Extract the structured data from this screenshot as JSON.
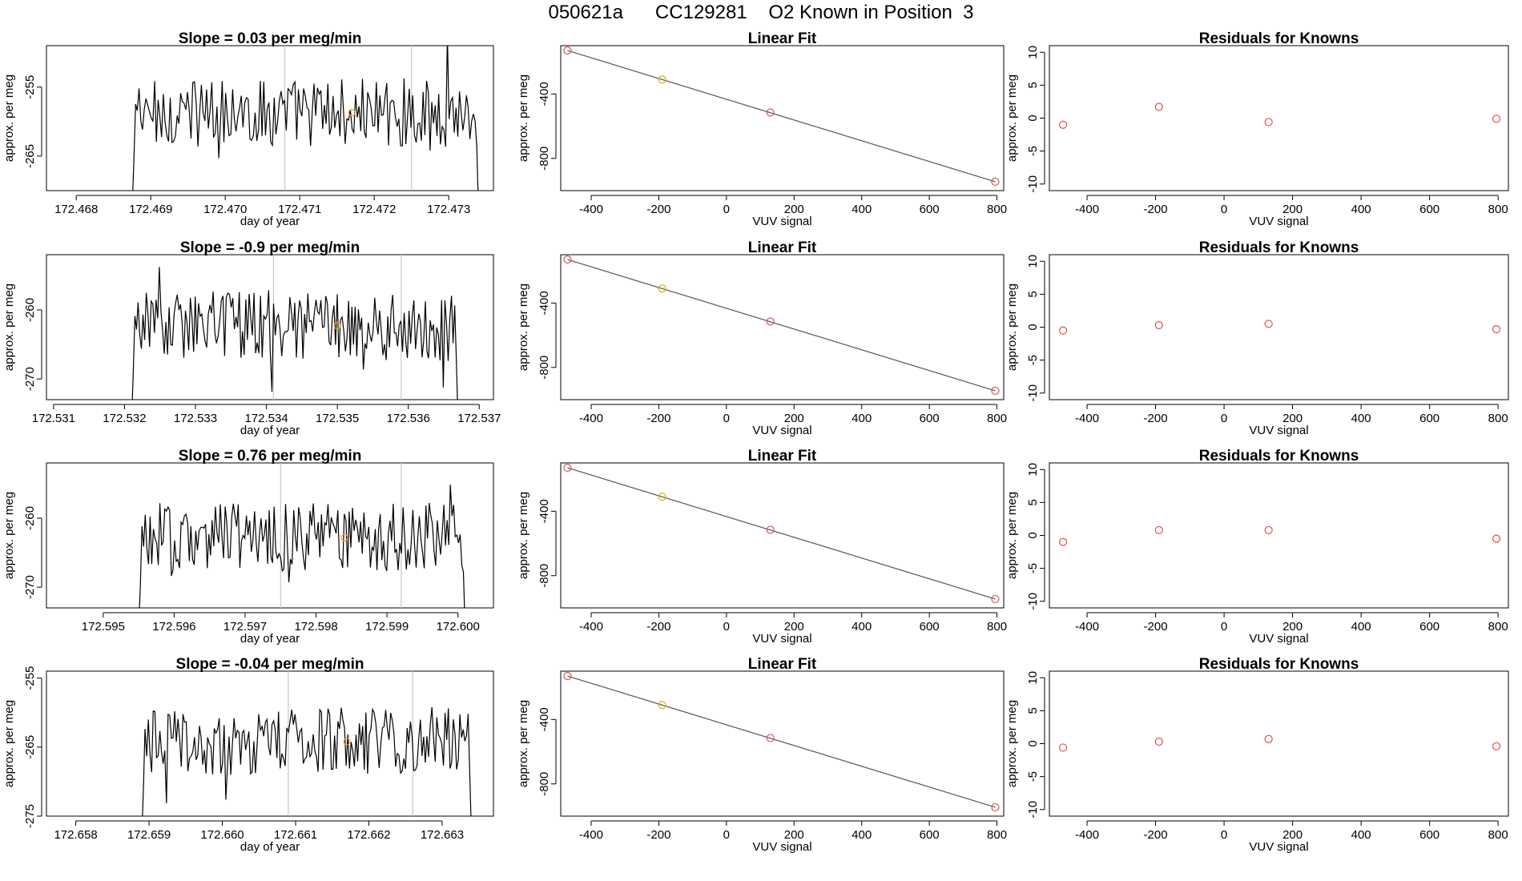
{
  "page_title": "050621a      CC129281    O2 Known in Position  3",
  "colors": {
    "axis": "#000000",
    "line": "#000000",
    "fit": "#555555",
    "orange": "#f0a030",
    "red": "#e05050",
    "vline": "#c8c8c8"
  },
  "chart_data": [
    {
      "type": "line",
      "row": 0,
      "title": "Slope =  0.03  per meg/min",
      "xlabel": "day of year",
      "ylabel": "approx. per meg",
      "xlim": [
        172.4676,
        172.4736
      ],
      "ylim": [
        -270,
        -249
      ],
      "xticks": [
        "172.468",
        "172.469",
        "172.470",
        "172.471",
        "172.472",
        "172.473"
      ],
      "yticks": [
        "-255",
        "-265"
      ],
      "start": 172.46875,
      "end": 172.4734,
      "vlines": [
        172.4708,
        172.4725
      ],
      "highlight": {
        "x": 172.4717,
        "y": -258.7
      }
    },
    {
      "type": "scatter",
      "row": 0,
      "title": "Linear Fit",
      "xlabel": "VUV signal",
      "ylabel": "approx. per meg",
      "xlim": [
        -490,
        820
      ],
      "ylim": [
        -1000,
        -100
      ],
      "xticks": [
        "-400",
        "-200",
        "0",
        "200",
        "400",
        "600",
        "800"
      ],
      "yticks": [
        "-400",
        "-800"
      ],
      "points": [
        [
          -470,
          -130
        ],
        [
          -190,
          -310
        ],
        [
          130,
          -515
        ],
        [
          795,
          -945
        ]
      ],
      "point_colors": [
        "red",
        "orange",
        "red",
        "red"
      ],
      "fit": [
        [
          -470,
          -130
        ],
        [
          795,
          -945
        ]
      ]
    },
    {
      "type": "scatter",
      "row": 0,
      "title": "Residuals for Knowns",
      "xlabel": "VUV signal",
      "ylabel": "approx. per meg",
      "xlim": [
        -510,
        830
      ],
      "ylim": [
        -11,
        11
      ],
      "xticks": [
        "-400",
        "-200",
        "0",
        "200",
        "400",
        "600",
        "800"
      ],
      "yticks": [
        "-10",
        "-5",
        "0",
        "5",
        "10"
      ],
      "points": [
        [
          -470,
          -1.0
        ],
        [
          -190,
          1.7
        ],
        [
          130,
          -0.6
        ],
        [
          795,
          -0.1
        ]
      ]
    },
    {
      "type": "line",
      "row": 1,
      "title": "Slope =  -0.9  per meg/min",
      "xlabel": "day of year",
      "ylabel": "approx. per meg",
      "xlim": [
        172.5309,
        172.5372
      ],
      "ylim": [
        -273,
        -252
      ],
      "xticks": [
        "172.531",
        "172.532",
        "172.533",
        "172.534",
        "172.535",
        "172.536",
        "172.537"
      ],
      "yticks": [
        "-260",
        "-270"
      ],
      "start": 172.5321,
      "end": 172.5367,
      "vlines": [
        172.5341,
        172.5359
      ],
      "highlight": {
        "x": 172.535,
        "y": -262.3
      }
    },
    {
      "type": "scatter",
      "row": 1,
      "title": "Linear Fit",
      "xlabel": "VUV signal",
      "ylabel": "approx. per meg",
      "xlim": [
        -490,
        820
      ],
      "ylim": [
        -1000,
        -100
      ],
      "xticks": [
        "-400",
        "-200",
        "0",
        "200",
        "400",
        "600",
        "800"
      ],
      "yticks": [
        "-400",
        "-800"
      ],
      "points": [
        [
          -470,
          -130
        ],
        [
          -190,
          -310
        ],
        [
          130,
          -515
        ],
        [
          795,
          -945
        ]
      ],
      "point_colors": [
        "red",
        "orange",
        "red",
        "red"
      ],
      "fit": [
        [
          -470,
          -130
        ],
        [
          795,
          -945
        ]
      ]
    },
    {
      "type": "scatter",
      "row": 1,
      "title": "Residuals for Knowns",
      "xlabel": "VUV signal",
      "ylabel": "approx. per meg",
      "xlim": [
        -510,
        830
      ],
      "ylim": [
        -11,
        11
      ],
      "xticks": [
        "-400",
        "-200",
        "0",
        "200",
        "400",
        "600",
        "800"
      ],
      "yticks": [
        "-10",
        "-5",
        "0",
        "5",
        "10"
      ],
      "points": [
        [
          -470,
          -0.5
        ],
        [
          -190,
          0.3
        ],
        [
          130,
          0.5
        ],
        [
          795,
          -0.3
        ]
      ]
    },
    {
      "type": "line",
      "row": 2,
      "title": "Slope =  0.76  per meg/min",
      "xlabel": "day of year",
      "ylabel": "approx. per meg",
      "xlim": [
        172.5942,
        172.6005
      ],
      "ylim": [
        -273,
        -252
      ],
      "xticks": [
        "172.595",
        "172.596",
        "172.597",
        "172.598",
        "172.599",
        "172.600"
      ],
      "yticks": [
        "-260",
        "-270"
      ],
      "start": 172.5955,
      "end": 172.6001,
      "vlines": [
        172.5975,
        172.5992
      ],
      "highlight": {
        "x": 172.5984,
        "y": -262.8
      }
    },
    {
      "type": "scatter",
      "row": 2,
      "title": "Linear Fit",
      "xlabel": "VUV signal",
      "ylabel": "approx. per meg",
      "xlim": [
        -490,
        820
      ],
      "ylim": [
        -1000,
        -100
      ],
      "xticks": [
        "-400",
        "-200",
        "0",
        "200",
        "400",
        "600",
        "800"
      ],
      "yticks": [
        "-400",
        "-800"
      ],
      "points": [
        [
          -470,
          -130
        ],
        [
          -190,
          -310
        ],
        [
          130,
          -515
        ],
        [
          795,
          -945
        ]
      ],
      "point_colors": [
        "red",
        "orange",
        "red",
        "red"
      ],
      "fit": [
        [
          -470,
          -130
        ],
        [
          795,
          -945
        ]
      ]
    },
    {
      "type": "scatter",
      "row": 2,
      "title": "Residuals for Knowns",
      "xlabel": "VUV signal",
      "ylabel": "approx. per meg",
      "xlim": [
        -510,
        830
      ],
      "ylim": [
        -11,
        11
      ],
      "xticks": [
        "-400",
        "-200",
        "0",
        "200",
        "400",
        "600",
        "800"
      ],
      "yticks": [
        "-10",
        "-5",
        "0",
        "5",
        "10"
      ],
      "points": [
        [
          -470,
          -1.0
        ],
        [
          -190,
          0.8
        ],
        [
          130,
          0.8
        ],
        [
          795,
          -0.5
        ]
      ]
    },
    {
      "type": "line",
      "row": 3,
      "title": "Slope =  -0.04  per meg/min",
      "xlabel": "day of year",
      "ylabel": "approx. per meg",
      "xlim": [
        172.6576,
        172.6637
      ],
      "ylim": [
        -275,
        -254
      ],
      "xticks": [
        "172.658",
        "172.659",
        "172.660",
        "172.661",
        "172.662",
        "172.663"
      ],
      "yticks": [
        "-255",
        "-265",
        "-275"
      ],
      "start": 172.6589,
      "end": 172.6634,
      "vlines": [
        172.6609,
        172.6626
      ],
      "highlight": {
        "x": 172.6617,
        "y": -264.2
      }
    },
    {
      "type": "scatter",
      "row": 3,
      "title": "Linear Fit",
      "xlabel": "VUV signal",
      "ylabel": "approx. per meg",
      "xlim": [
        -490,
        820
      ],
      "ylim": [
        -1000,
        -100
      ],
      "xticks": [
        "-400",
        "-200",
        "0",
        "200",
        "400",
        "600",
        "800"
      ],
      "yticks": [
        "-400",
        "-800"
      ],
      "points": [
        [
          -470,
          -130
        ],
        [
          -190,
          -310
        ],
        [
          130,
          -515
        ],
        [
          795,
          -945
        ]
      ],
      "point_colors": [
        "red",
        "orange",
        "red",
        "red"
      ],
      "fit": [
        [
          -470,
          -130
        ],
        [
          795,
          -945
        ]
      ]
    },
    {
      "type": "scatter",
      "row": 3,
      "title": "Residuals for Knowns",
      "xlabel": "VUV signal",
      "ylabel": "approx. per meg",
      "xlim": [
        -510,
        830
      ],
      "ylim": [
        -11,
        11
      ],
      "xticks": [
        "-400",
        "-200",
        "0",
        "200",
        "400",
        "600",
        "800"
      ],
      "yticks": [
        "-10",
        "-5",
        "0",
        "5",
        "10"
      ],
      "points": [
        [
          -470,
          -0.6
        ],
        [
          -190,
          0.3
        ],
        [
          130,
          0.7
        ],
        [
          795,
          -0.4
        ]
      ]
    }
  ]
}
